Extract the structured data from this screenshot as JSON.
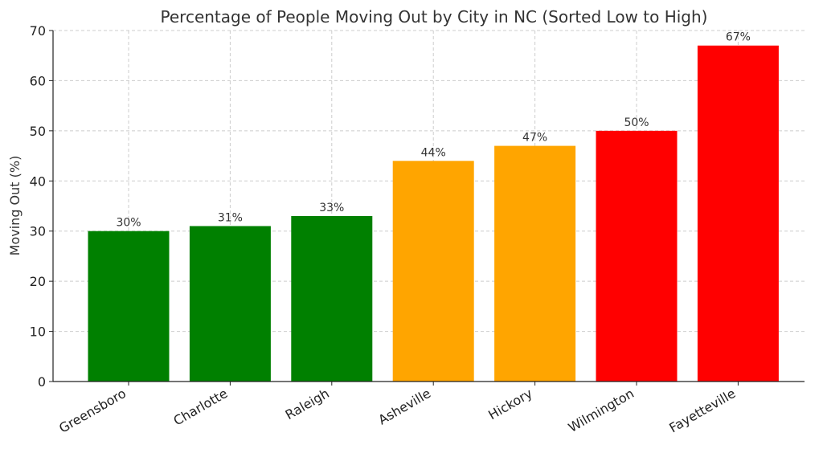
{
  "chart_data": {
    "type": "bar",
    "title": "Percentage of People Moving Out by City in NC (Sorted Low to High)",
    "xlabel": "",
    "ylabel": "Moving Out (%)",
    "ylim": [
      0,
      70
    ],
    "yticks": [
      0,
      10,
      20,
      30,
      40,
      50,
      60,
      70
    ],
    "grid": true,
    "categories": [
      "Greensboro",
      "Charlotte",
      "Raleigh",
      "Asheville",
      "Hickory",
      "Wilmington",
      "Fayetteville"
    ],
    "values": [
      30,
      31,
      33,
      44,
      47,
      50,
      67
    ],
    "value_labels": [
      "30%",
      "31%",
      "33%",
      "44%",
      "47%",
      "50%",
      "67%"
    ],
    "colors": [
      "#008000",
      "#008000",
      "#008000",
      "#FFA500",
      "#FFA500",
      "#FF0000",
      "#FF0000"
    ]
  }
}
